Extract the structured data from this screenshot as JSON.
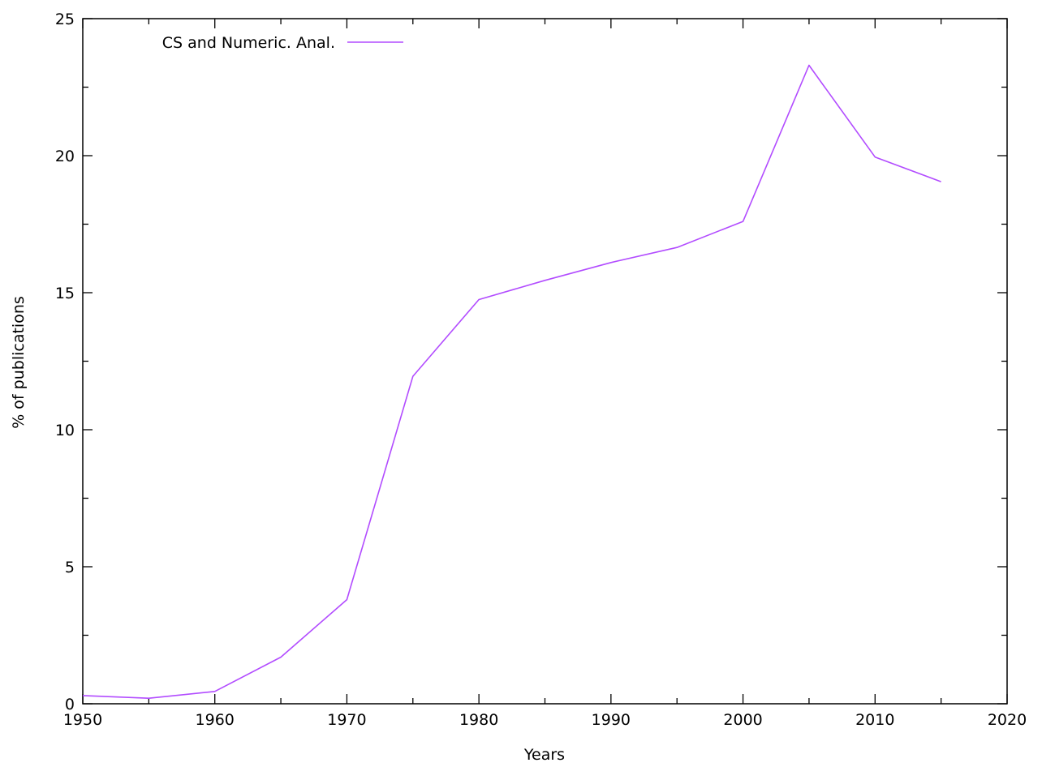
{
  "chart_data": {
    "type": "line",
    "title": "",
    "xlabel": "Years",
    "ylabel": "% of publications",
    "xlim": [
      1950,
      2020
    ],
    "ylim": [
      0,
      25
    ],
    "xticks": [
      1950,
      1960,
      1970,
      1980,
      1990,
      2000,
      2010,
      2020
    ],
    "yticks": [
      0,
      5,
      10,
      15,
      20,
      25
    ],
    "grid": false,
    "legend_position": "top-left",
    "series": [
      {
        "name": "CS and Numeric. Anal.",
        "color": "#b24cff",
        "x": [
          1950,
          1955,
          1960,
          1965,
          1970,
          1975,
          1980,
          1985,
          1990,
          1995,
          2000,
          2005,
          2010,
          2015
        ],
        "y": [
          0.3,
          0.2,
          0.45,
          1.7,
          3.8,
          11.95,
          14.75,
          15.45,
          16.1,
          16.65,
          17.6,
          23.3,
          19.95,
          19.05
        ]
      }
    ]
  }
}
